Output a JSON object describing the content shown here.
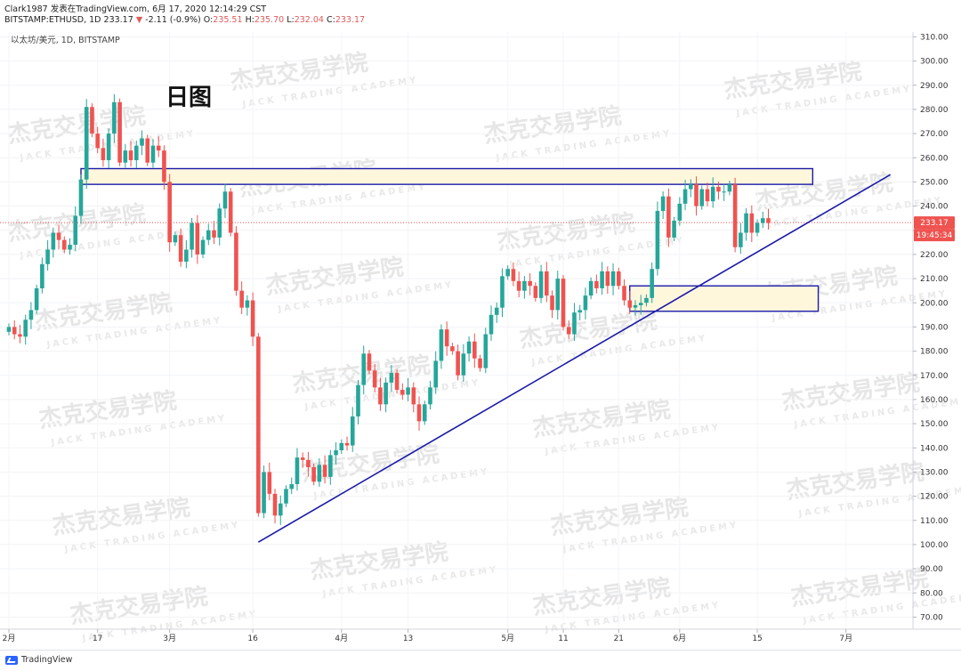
{
  "header": {
    "publisher": "Clark1987 发表在TradingView.com, 6月 17, 2020 12:14:29 CST",
    "symbol": "BITSTAMP:ETHUSD, 1D",
    "last": "233.17",
    "change_arrow": "▼",
    "change": "-2.11 (-0.9%)",
    "o_label": "O:",
    "o_value": "235.51",
    "h_label": "H:",
    "h_value": "235.70",
    "l_label": "L:",
    "l_value": "232.04",
    "c_label": "C:",
    "c_value": "233.17"
  },
  "chart_title": "以太坊/美元, 1D, BITSTAMP",
  "annotation_text": "日图",
  "watermark": {
    "cn": "杰克交易学院",
    "en": "JACK TRADING ACADEMY"
  },
  "footer": {
    "brand": "TradingView"
  },
  "colors": {
    "up": "#26a69a",
    "down": "#ef5350",
    "drawing": "#1a1aa8",
    "zone_fill": "#fff7dc",
    "price_line": "#ef5350"
  },
  "chart_data": {
    "type": "candlestick",
    "symbol": "ETHUSD",
    "timeframe": "1D",
    "ylim": [
      65,
      312
    ],
    "y_ticks": [
      "310.00",
      "300.00",
      "290.00",
      "280.00",
      "270.00",
      "260.00",
      "250.00",
      "240.00",
      "230.00",
      "220.00",
      "210.00",
      "200.00",
      "190.00",
      "180.00",
      "170.00",
      "160.00",
      "150.00",
      "140.00",
      "130.00",
      "120.00",
      "110.00",
      "100.00",
      "90.00",
      "80.00",
      "70.00"
    ],
    "x_ticks": [
      {
        "label": "2月",
        "day": 0
      },
      {
        "label": "17",
        "day": 16
      },
      {
        "label": "3月",
        "day": 29
      },
      {
        "label": "16",
        "day": 44
      },
      {
        "label": "4月",
        "day": 60
      },
      {
        "label": "13",
        "day": 72
      },
      {
        "label": "5月",
        "day": 90
      },
      {
        "label": "11",
        "day": 100
      },
      {
        "label": "21",
        "day": 110
      },
      {
        "label": "6月",
        "day": 121
      },
      {
        "label": "15",
        "day": 135
      },
      {
        "label": "7月",
        "day": 151
      }
    ],
    "last_price": "233.17",
    "countdown": "19:45:34",
    "closes": [
      190,
      187,
      186,
      193,
      197,
      206,
      216,
      222,
      229,
      226,
      222,
      224,
      236,
      251,
      281,
      270,
      264,
      259,
      270,
      283,
      258,
      263,
      259,
      265,
      268,
      258,
      265,
      263,
      250,
      225,
      228,
      217,
      222,
      233,
      220,
      226,
      230,
      227,
      239,
      246,
      229,
      205,
      198,
      201,
      186,
      113,
      130,
      121,
      112,
      117,
      123,
      125,
      136,
      135,
      132,
      126,
      133,
      128,
      137,
      139,
      142,
      141,
      153,
      166,
      179,
      172,
      165,
      158,
      167,
      171,
      164,
      162,
      165,
      158,
      151,
      158,
      165,
      176,
      189,
      182,
      180,
      170,
      179,
      184,
      177,
      173,
      187,
      195,
      198,
      211,
      214,
      209,
      205,
      209,
      207,
      202,
      213,
      203,
      197,
      210,
      190,
      187,
      196,
      197,
      203,
      209,
      206,
      213,
      207,
      213,
      207,
      201,
      198,
      199,
      200,
      202,
      214,
      238,
      244,
      227,
      234,
      241,
      247,
      249,
      240,
      247,
      242,
      248,
      246,
      246,
      249,
      223,
      229,
      237,
      229,
      233,
      235,
      233
    ]
  }
}
